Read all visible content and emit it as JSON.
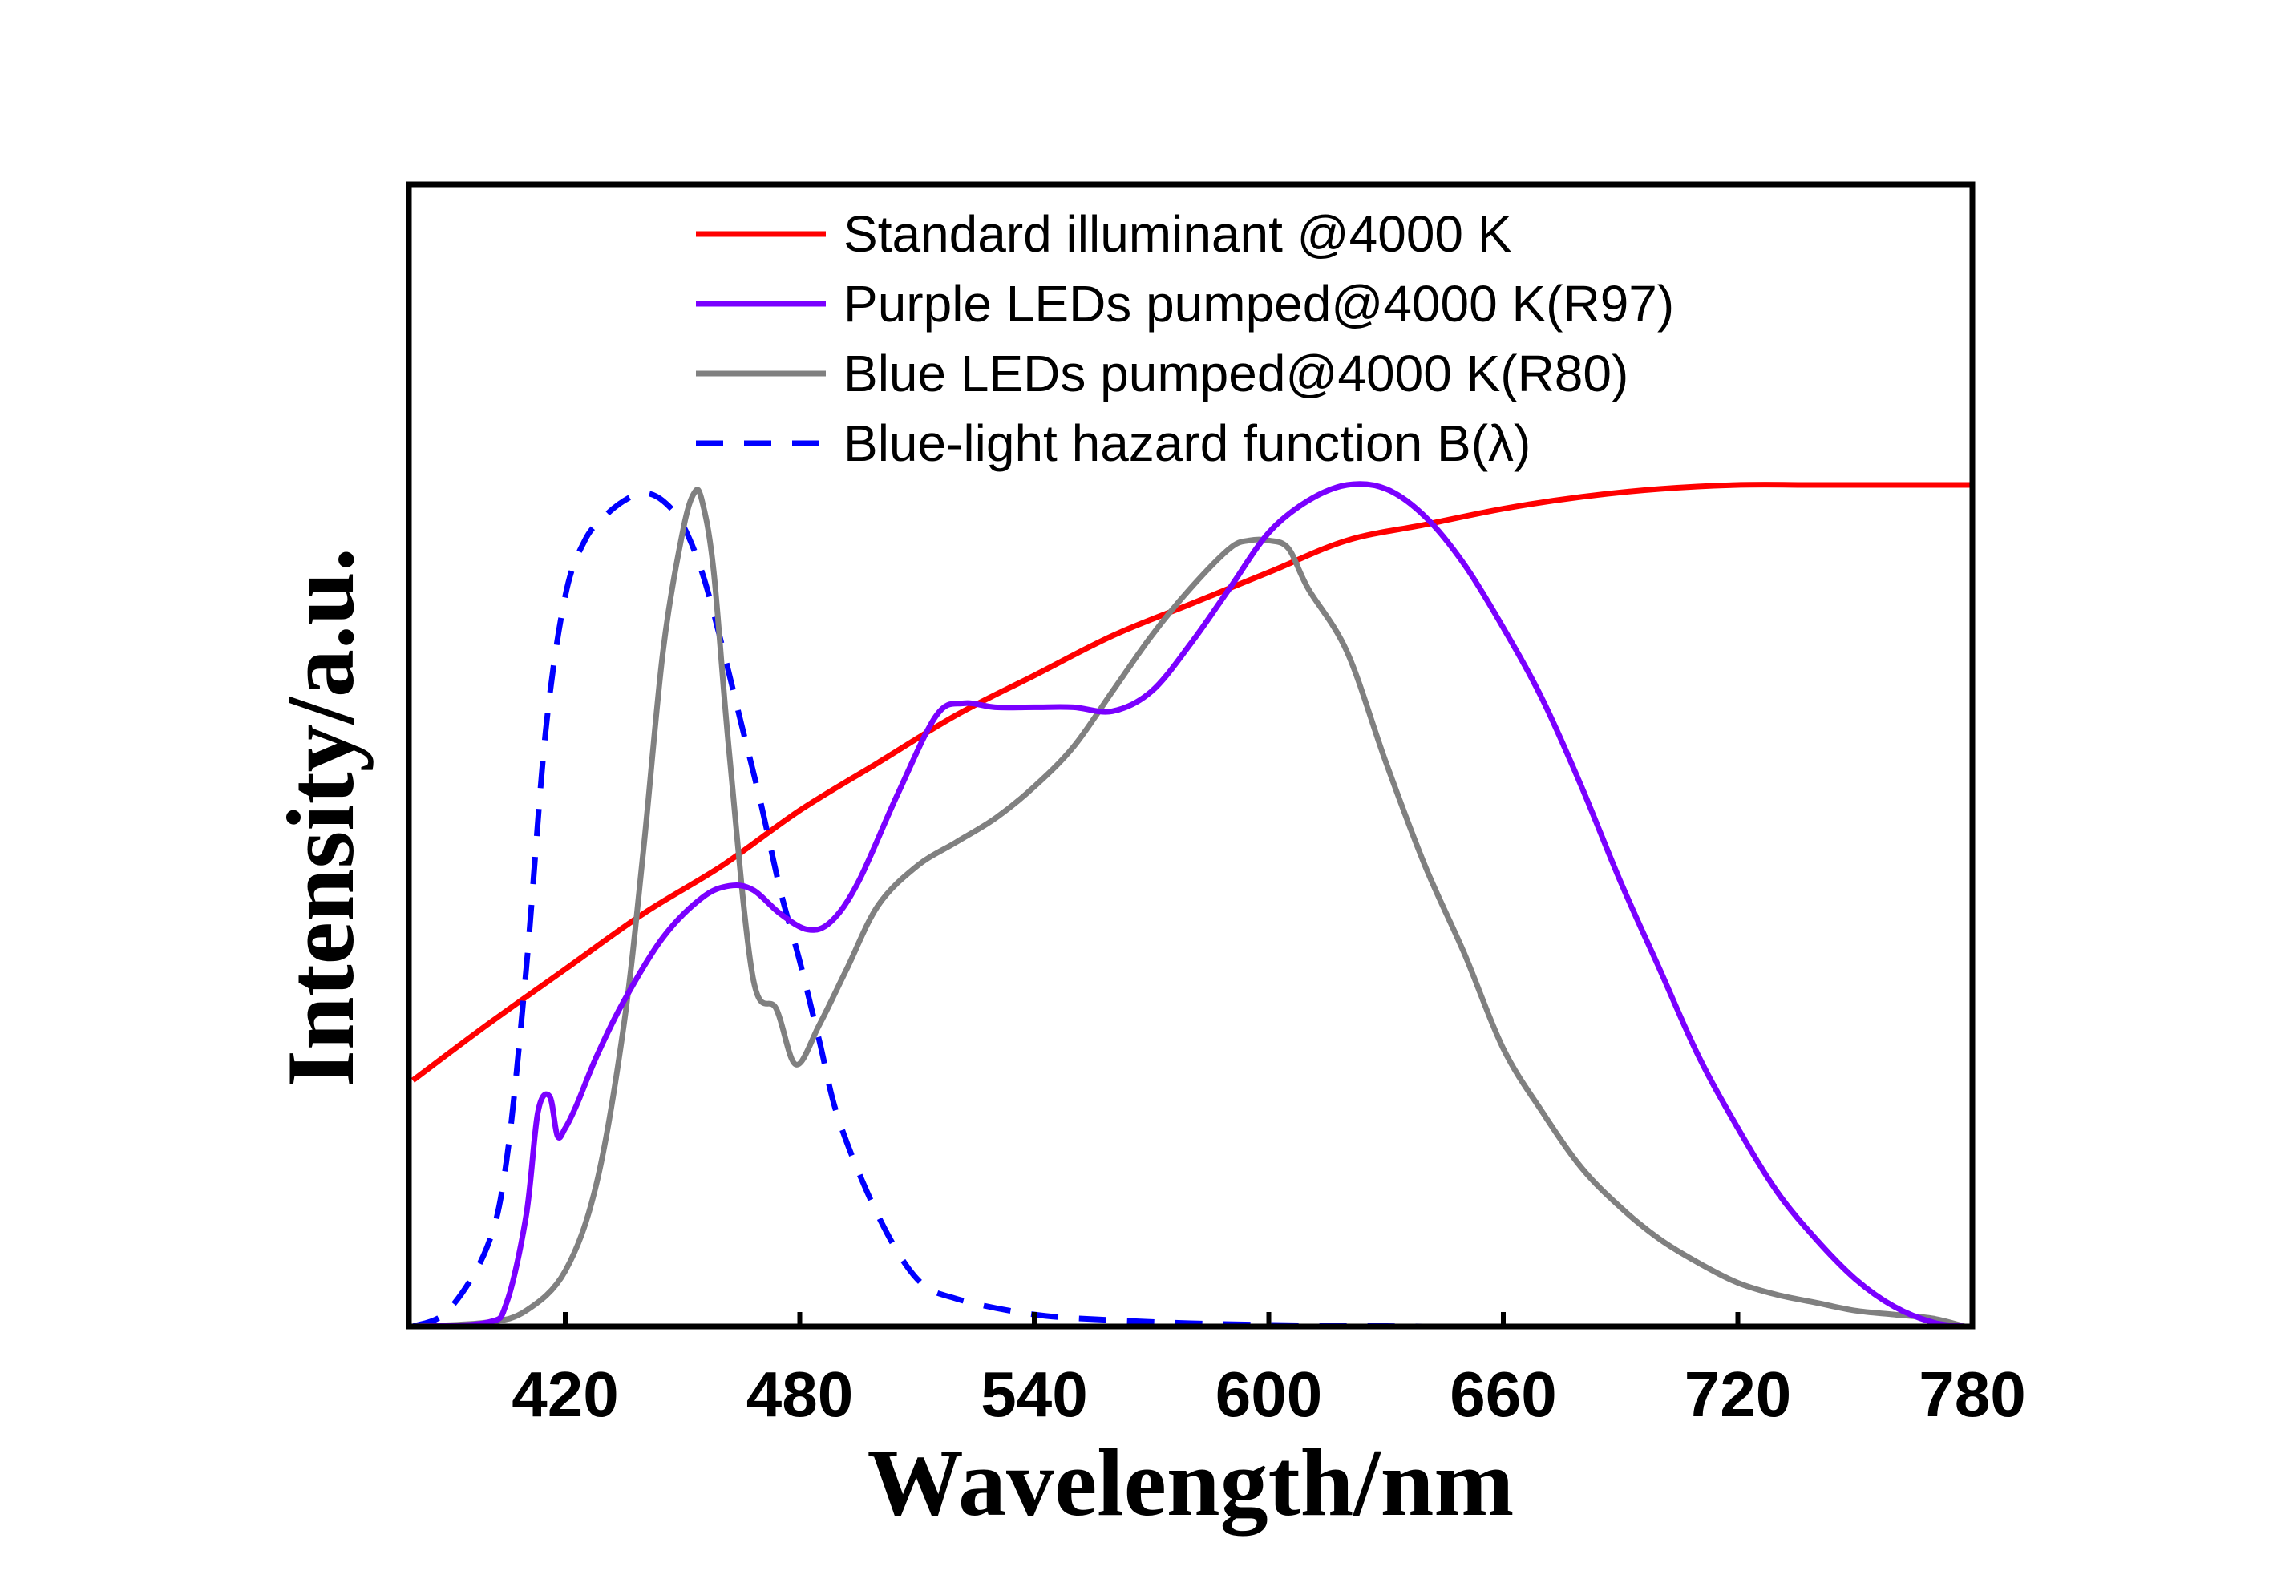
{
  "chart_data": {
    "type": "line",
    "title": "",
    "xlabel": "Wavelength/nm",
    "ylabel": "Intensity/a.u.",
    "xlim": [
      380,
      780
    ],
    "ylim": [
      0,
      1.06
    ],
    "x_ticks": [
      420,
      480,
      540,
      600,
      660,
      720,
      780
    ],
    "y_ticks": [],
    "grid": false,
    "legend_position": "top-center",
    "series": [
      {
        "name": "Standard illuminant @4000 K",
        "color": "#ff0000",
        "style": "solid",
        "x": [
          381,
          400,
          420,
          440,
          460,
          480,
          500,
          520,
          540,
          560,
          580,
          600,
          620,
          640,
          660,
          680,
          700,
          720,
          740,
          760,
          780
        ],
        "y": [
          0.31,
          0.38,
          0.45,
          0.52,
          0.58,
          0.65,
          0.71,
          0.77,
          0.82,
          0.87,
          0.91,
          0.95,
          0.99,
          1.01,
          1.03,
          1.045,
          1.055,
          1.06,
          1.06,
          1.06,
          1.06
        ]
      },
      {
        "name": "Purple LEDs pumped@4000 K(R97)",
        "color": "#7a00ff",
        "style": "solid",
        "x": [
          381,
          400,
          405,
          410,
          413,
          416,
          418,
          420,
          423,
          428,
          435,
          445,
          455,
          462,
          468,
          475,
          482,
          488,
          495,
          505,
          515,
          522,
          530,
          540,
          550,
          560,
          570,
          580,
          590,
          600,
          610,
          620,
          630,
          640,
          650,
          660,
          670,
          680,
          690,
          700,
          710,
          720,
          730,
          740,
          750,
          760,
          770,
          778
        ],
        "y": [
          0.0,
          0.005,
          0.03,
          0.14,
          0.27,
          0.29,
          0.24,
          0.25,
          0.28,
          0.34,
          0.41,
          0.49,
          0.54,
          0.555,
          0.55,
          0.52,
          0.5,
          0.51,
          0.56,
          0.67,
          0.77,
          0.785,
          0.78,
          0.78,
          0.78,
          0.775,
          0.8,
          0.86,
          0.93,
          1.0,
          1.04,
          1.06,
          1.055,
          1.02,
          0.96,
          0.88,
          0.79,
          0.68,
          0.56,
          0.45,
          0.34,
          0.25,
          0.17,
          0.11,
          0.06,
          0.025,
          0.005,
          0.0
        ]
      },
      {
        "name": "Blue LEDs pumped@4000 K(R80)",
        "color": "#808080",
        "style": "solid",
        "x": [
          381,
          400,
          410,
          420,
          428,
          435,
          440,
          445,
          450,
          453,
          455,
          458,
          462,
          468,
          474,
          479,
          485,
          492,
          500,
          510,
          520,
          530,
          540,
          550,
          560,
          570,
          580,
          590,
          595,
          600,
          605,
          610,
          620,
          630,
          640,
          650,
          660,
          670,
          680,
          690,
          700,
          710,
          720,
          730,
          740,
          750,
          760,
          770,
          778
        ],
        "y": [
          0.0,
          0.005,
          0.02,
          0.07,
          0.18,
          0.38,
          0.6,
          0.85,
          1.0,
          1.05,
          1.04,
          0.95,
          0.72,
          0.44,
          0.4,
          0.33,
          0.38,
          0.45,
          0.53,
          0.58,
          0.61,
          0.64,
          0.68,
          0.73,
          0.8,
          0.87,
          0.93,
          0.98,
          0.99,
          0.99,
          0.98,
          0.93,
          0.85,
          0.71,
          0.58,
          0.47,
          0.35,
          0.27,
          0.2,
          0.15,
          0.11,
          0.08,
          0.055,
          0.04,
          0.03,
          0.02,
          0.015,
          0.01,
          0.0
        ]
      },
      {
        "name": "Blue-light hazard function B(λ)",
        "color": "#0000ff",
        "style": "dashed",
        "x": [
          381,
          390,
          400,
          405,
          410,
          415,
          420,
          425,
          430,
          435,
          440,
          445,
          450,
          455,
          460,
          465,
          470,
          475,
          480,
          485,
          490,
          500,
          510,
          520,
          540,
          560,
          580,
          600,
          620,
          640,
          660,
          680,
          690
        ],
        "y": [
          0.0,
          0.02,
          0.1,
          0.21,
          0.45,
          0.75,
          0.92,
          0.99,
          1.02,
          1.04,
          1.05,
          1.04,
          1.01,
          0.95,
          0.86,
          0.76,
          0.66,
          0.55,
          0.46,
          0.36,
          0.26,
          0.14,
          0.06,
          0.035,
          0.015,
          0.008,
          0.004,
          0.002,
          0.001,
          0.0,
          0.0,
          0.0,
          0.0
        ]
      }
    ]
  }
}
